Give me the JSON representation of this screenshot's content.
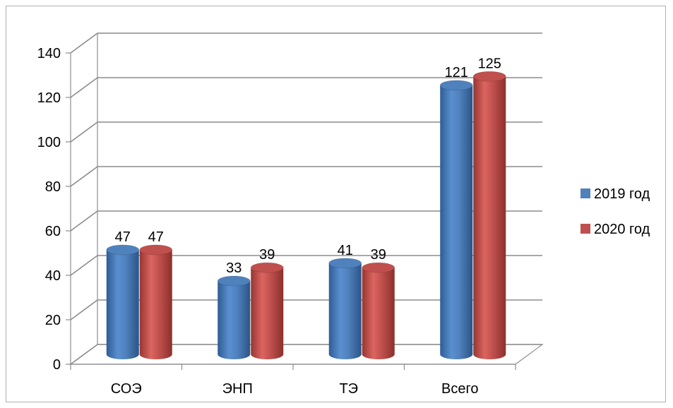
{
  "chart_data": {
    "type": "bar",
    "style": "3d-cylinder",
    "categories": [
      "СОЭ",
      "ЭНП",
      "ТЭ",
      "Всего"
    ],
    "series": [
      {
        "name": "2019 год",
        "values": [
          47,
          33,
          41,
          121
        ],
        "color": "#4f81bd"
      },
      {
        "name": "2020 год",
        "values": [
          47,
          39,
          39,
          125
        ],
        "color": "#c0504d"
      }
    ],
    "title": "",
    "xlabel": "",
    "ylabel": "",
    "ylim": [
      0,
      140
    ],
    "yticks": [
      0,
      20,
      40,
      60,
      80,
      100,
      120,
      140
    ],
    "grid": true,
    "legend_position": "right"
  }
}
